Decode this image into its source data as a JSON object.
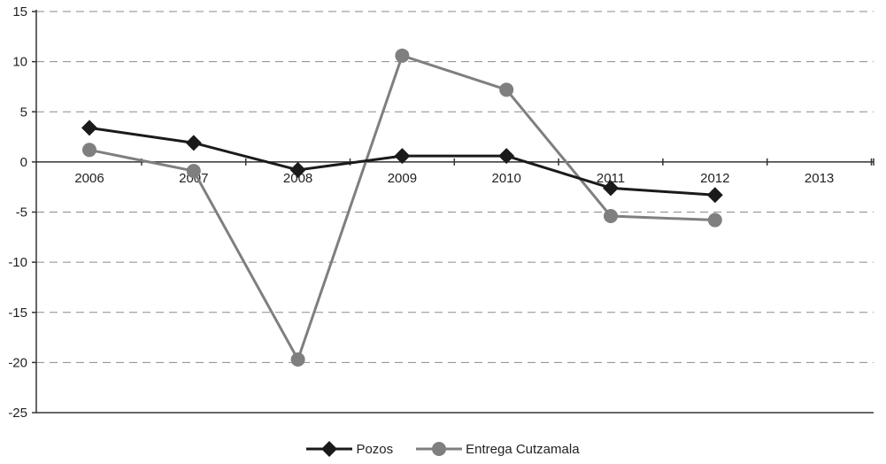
{
  "chart_data": {
    "type": "line",
    "categories": [
      "2006",
      "2007",
      "2008",
      "2009",
      "2010",
      "2011",
      "2012",
      "2013"
    ],
    "series": [
      {
        "name": "Pozos",
        "values": [
          3.4,
          1.9,
          -0.8,
          0.6,
          0.6,
          -2.6,
          -3.3,
          null
        ],
        "color": "#1a1a1a",
        "marker": "diamond"
      },
      {
        "name": "Entrega Cutzamala",
        "values": [
          1.2,
          -0.9,
          -19.7,
          10.6,
          7.2,
          -5.4,
          -5.8,
          null
        ],
        "color": "#7f7f7f",
        "marker": "circle"
      }
    ],
    "ylim": [
      -25,
      15
    ],
    "yticks": [
      "15",
      "10",
      "5",
      "0",
      "-5",
      "-10",
      "-15",
      "-20",
      "-25"
    ],
    "grid": true,
    "legend_position": "bottom-center",
    "title": "",
    "xlabel": "",
    "ylabel": ""
  }
}
